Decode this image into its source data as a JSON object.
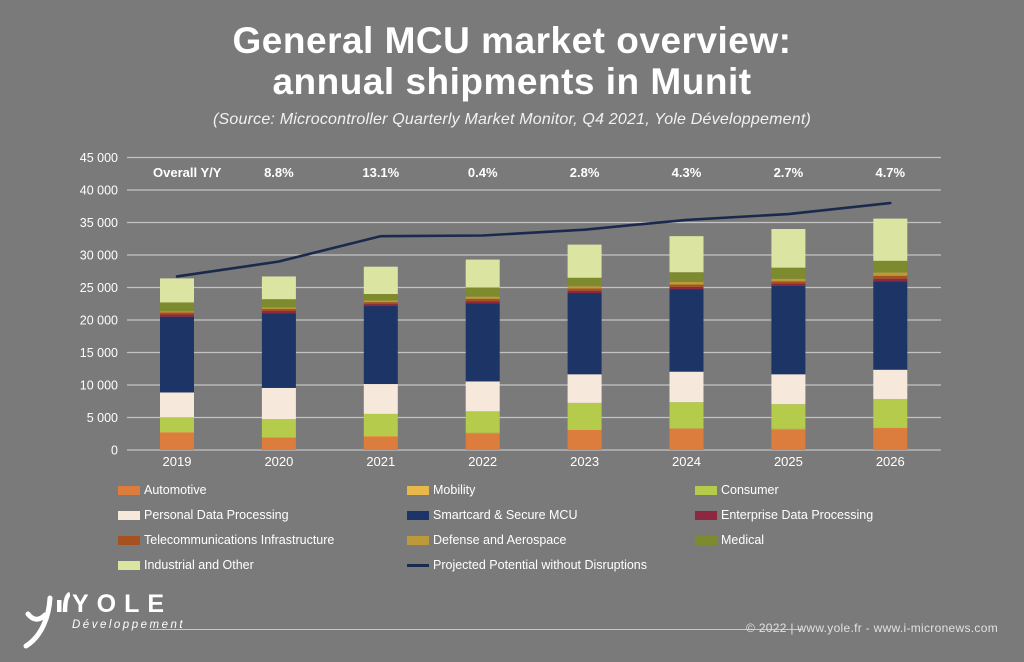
{
  "header": {
    "title_line1": "General MCU market overview:",
    "title_line2": "annual shipments in Munit",
    "subtitle": "(Source: Microcontroller Quarterly Market Monitor, Q4 2021, Yole Développement)"
  },
  "colors": {
    "background": "#7A7A7A",
    "text": "#FFFFFF",
    "gridline": "#FFFFFF"
  },
  "chart_data": {
    "type": "stacked-bar-with-line",
    "unit": "Munit",
    "categories": [
      "2019",
      "2020",
      "2021",
      "2022",
      "2023",
      "2024",
      "2025",
      "2026"
    ],
    "y_axis": {
      "min": 0,
      "max": 45000,
      "step": 5000,
      "tick_labels": [
        "0",
        "5 000",
        "10 000",
        "15 000",
        "20 000",
        "25 000",
        "30 000",
        "35 000",
        "40 000",
        "45 000"
      ]
    },
    "overall_yy": {
      "label": "Overall Y/Y",
      "values": [
        "8.8%",
        "13.1%",
        "0.4%",
        "2.8%",
        "4.3%",
        "2.7%",
        "4.7%"
      ],
      "applies_to_categories": [
        "2020",
        "2021",
        "2022",
        "2023",
        "2024",
        "2025",
        "2026"
      ]
    },
    "series": [
      {
        "name": "Automotive",
        "color": "#DD7D3D",
        "values": [
          2700,
          1950,
          2100,
          2600,
          3100,
          3300,
          3200,
          3400
        ]
      },
      {
        "name": "Mobility",
        "color": "#E8B84B",
        "values": [
          50,
          50,
          50,
          50,
          50,
          50,
          50,
          50
        ]
      },
      {
        "name": "Consumer",
        "color": "#B5CB4B",
        "values": [
          2300,
          2750,
          3400,
          3300,
          4100,
          4000,
          3800,
          4400
        ]
      },
      {
        "name": "Personal Data Processing",
        "color": "#F7E8DC",
        "values": [
          3800,
          4800,
          4600,
          4600,
          4400,
          4700,
          4600,
          4500
        ]
      },
      {
        "name": "Smartcard & Secure MCU",
        "color": "#1C3566",
        "values": [
          11650,
          11500,
          12000,
          12000,
          12500,
          12700,
          13600,
          13600
        ]
      },
      {
        "name": "Enterprise Data Processing",
        "color": "#8E2740",
        "values": [
          350,
          350,
          300,
          350,
          350,
          350,
          350,
          400
        ]
      },
      {
        "name": "Telecommunications Infrastructure",
        "color": "#A65220",
        "values": [
          300,
          300,
          300,
          350,
          350,
          350,
          350,
          450
        ]
      },
      {
        "name": "Defense and Aerospace",
        "color": "#BC9A3B",
        "values": [
          200,
          250,
          250,
          350,
          350,
          400,
          400,
          500
        ]
      },
      {
        "name": "Medical",
        "color": "#7D8B2E",
        "values": [
          1350,
          1250,
          1000,
          1400,
          1300,
          1500,
          1700,
          1800
        ]
      },
      {
        "name": "Industrial and Other",
        "color": "#DBE4A0",
        "values": [
          3700,
          3500,
          4200,
          4300,
          5100,
          5550,
          5950,
          6500
        ]
      }
    ],
    "bar_totals": [
      26400,
      26700,
      28200,
      29300,
      31600,
      32900,
      34000,
      35600
    ],
    "line": {
      "name": "Projected Potential without Disruptions",
      "color": "#1A2A4D",
      "values": [
        26700,
        29000,
        32900,
        33000,
        33900,
        35400,
        36300,
        38000
      ]
    },
    "legend_position": "bottom",
    "grid": true
  },
  "footer": {
    "brand": "YOLE",
    "brand_sub": "Développement",
    "copyright": "© 2022 | www.yole.fr - www.i-micronews.com"
  }
}
